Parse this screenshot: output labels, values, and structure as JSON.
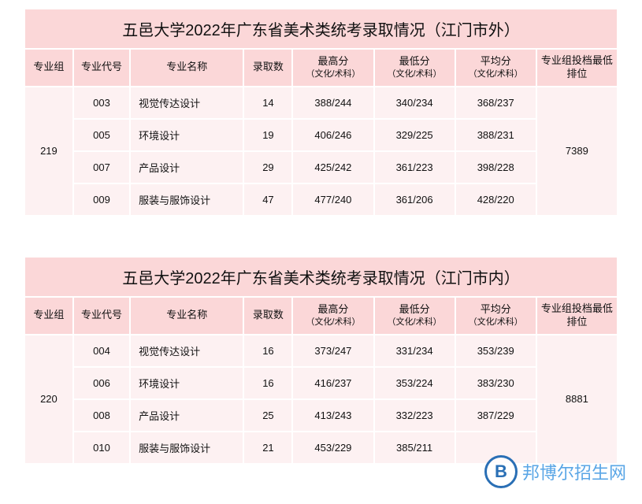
{
  "colors": {
    "title_bg": "#fbd7d8",
    "header_bg": "#fbd7d8",
    "body_bg": "#fdf1f2",
    "border": "#ffffff",
    "text": "#111111",
    "watermark": "#5aa6e6",
    "watermark_circle": "#2a6fb5"
  },
  "columns": [
    {
      "key": "group",
      "label": "专业组",
      "sub": "",
      "width": "60"
    },
    {
      "key": "code",
      "label": "专业代号",
      "sub": "",
      "width": "70"
    },
    {
      "key": "name",
      "label": "专业名称",
      "sub": "",
      "width": "140"
    },
    {
      "key": "count",
      "label": "录取数",
      "sub": "",
      "width": "60"
    },
    {
      "key": "max",
      "label": "最高分",
      "sub": "（文化/术科）",
      "width": "100"
    },
    {
      "key": "min",
      "label": "最低分",
      "sub": "（文化/术科）",
      "width": "100"
    },
    {
      "key": "avg",
      "label": "平均分",
      "sub": "（文化/术科）",
      "width": "100"
    },
    {
      "key": "rank",
      "label": "专业组投档最低排位",
      "sub": "",
      "width": "100"
    }
  ],
  "tables": [
    {
      "title": "五邑大学2022年广东省美术类统考录取情况（江门市外）",
      "group": "219",
      "rank": "7389",
      "rows": [
        {
          "code": "003",
          "name": "视觉传达设计",
          "count": "14",
          "max": "388/244",
          "min": "340/234",
          "avg": "368/237"
        },
        {
          "code": "005",
          "name": "环境设计",
          "count": "19",
          "max": "406/246",
          "min": "329/225",
          "avg": "388/231"
        },
        {
          "code": "007",
          "name": "产品设计",
          "count": "29",
          "max": "425/242",
          "min": "361/223",
          "avg": "398/228"
        },
        {
          "code": "009",
          "name": "服装与服饰设计",
          "count": "47",
          "max": "477/240",
          "min": "361/206",
          "avg": "428/220"
        }
      ]
    },
    {
      "title": "五邑大学2022年广东省美术类统考录取情况（江门市内）",
      "group": "220",
      "rank": "8881",
      "rows": [
        {
          "code": "004",
          "name": "视觉传达设计",
          "count": "16",
          "max": "373/247",
          "min": "331/234",
          "avg": "353/239"
        },
        {
          "code": "006",
          "name": "环境设计",
          "count": "16",
          "max": "416/237",
          "min": "353/224",
          "avg": "383/230"
        },
        {
          "code": "008",
          "name": "产品设计",
          "count": "25",
          "max": "413/243",
          "min": "332/223",
          "avg": "387/229"
        },
        {
          "code": "010",
          "name": "服装与服饰设计",
          "count": "21",
          "max": "453/229",
          "min": "385/211",
          "avg": ""
        }
      ]
    }
  ],
  "watermark": {
    "logo": "B",
    "text": "邦博尔招生网"
  }
}
